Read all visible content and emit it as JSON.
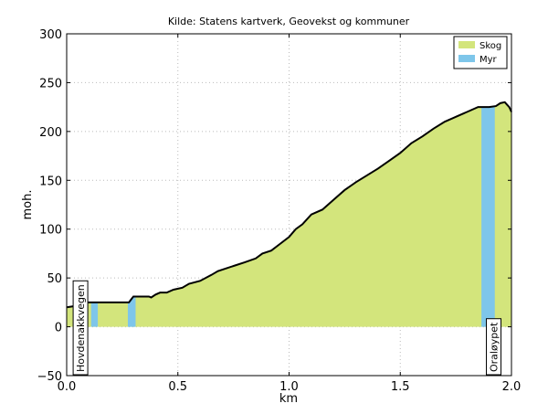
{
  "chart_data": {
    "type": "profile",
    "title": "Kilde: Statens kartverk, Geovekst og kommuner",
    "xlabel": "km",
    "ylabel": "moh.",
    "x": [
      0.0,
      0.03,
      0.05,
      0.08,
      0.28,
      0.29,
      0.3,
      0.37,
      0.38,
      0.4,
      0.42,
      0.45,
      0.48,
      0.52,
      0.55,
      0.6,
      0.65,
      0.68,
      0.72,
      0.76,
      0.8,
      0.85,
      0.88,
      0.92,
      0.96,
      1.0,
      1.03,
      1.06,
      1.1,
      1.15,
      1.2,
      1.25,
      1.3,
      1.35,
      1.4,
      1.45,
      1.5,
      1.55,
      1.6,
      1.65,
      1.7,
      1.75,
      1.8,
      1.85,
      1.9,
      1.93,
      1.95,
      1.97,
      1.99,
      2.0
    ],
    "series": [
      {
        "name": "Skog",
        "color": "#d3e57c",
        "values": [
          20,
          21,
          23,
          25,
          25,
          28,
          31,
          31,
          30,
          33,
          35,
          35,
          38,
          40,
          44,
          47,
          53,
          57,
          60,
          63,
          66,
          70,
          75,
          78,
          85,
          92,
          100,
          105,
          115,
          120,
          130,
          140,
          148,
          155,
          162,
          170,
          178,
          188,
          195,
          203,
          210,
          215,
          220,
          225,
          225,
          226,
          229,
          230,
          225,
          220
        ]
      },
      {
        "name": "Myr",
        "color": "#7ec6ea",
        "ranges": [
          [
            0.11,
            0.14
          ],
          [
            0.275,
            0.31
          ],
          [
            1.865,
            1.925
          ]
        ]
      }
    ],
    "annotations": [
      {
        "text": "Hovdenakkvegen",
        "x": 0.062
      },
      {
        "text": "Oraløypet",
        "x": 1.92
      }
    ],
    "xlim": [
      0,
      2
    ],
    "xticks": [
      {
        "value": 0,
        "label": "0.0"
      },
      {
        "value": 0.5,
        "label": "0.5"
      },
      {
        "value": 1,
        "label": "1.0"
      },
      {
        "value": 1.5,
        "label": "1.5"
      },
      {
        "value": 2,
        "label": "2.0"
      }
    ],
    "ylim": [
      -50,
      300
    ],
    "yticks": [
      {
        "value": -50,
        "label": "−50"
      },
      0,
      50,
      100,
      150,
      200,
      250,
      300
    ],
    "grid": true,
    "legend": "upper right"
  }
}
